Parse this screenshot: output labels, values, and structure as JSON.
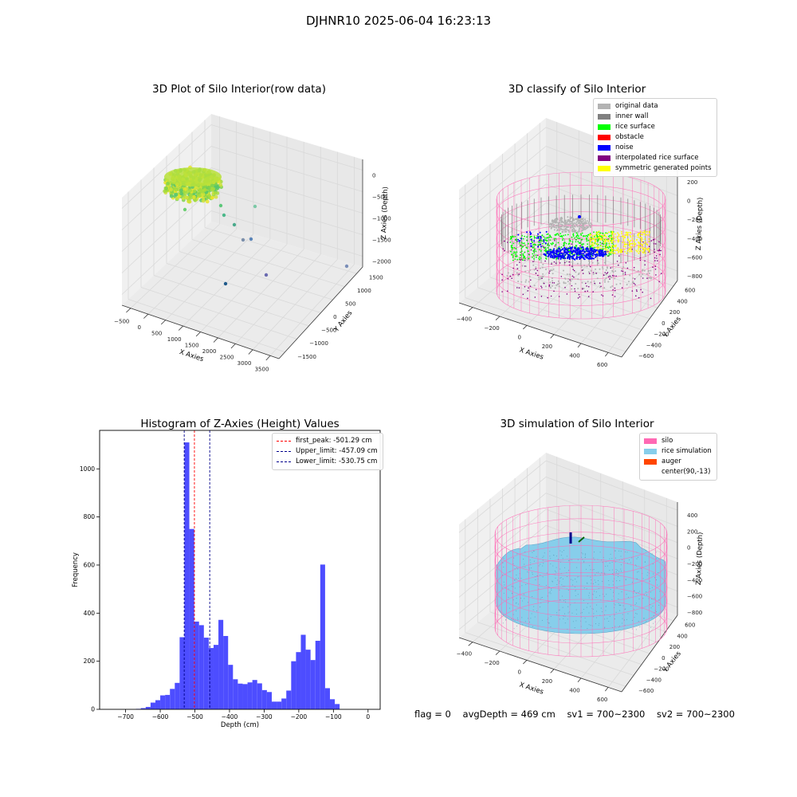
{
  "suptitle": "DJHNR10 2025-06-04 16:23:13",
  "colors": {
    "original": "#b3b3b3",
    "wall": "#808080",
    "rice_surface": "#00ff00",
    "obstacle": "#ff0000",
    "noise": "#0000ff",
    "interp": "#800080",
    "symmetric": "#ffff00",
    "silo": "#ff69b4",
    "rice_sim": "#87ceeb",
    "auger": "#ff4500",
    "hist_bar": "#4d4dff",
    "peak_line": "#ff0000",
    "limit_line": "#00008b"
  },
  "plot1": {
    "title": "3D Plot of Silo Interior(row data)",
    "xlabel": "X Axies",
    "ylabel": "Y Axies",
    "zlabel": "Z Axies (Depth)",
    "xticks": [
      "−500",
      "0",
      "500",
      "1000",
      "1500",
      "2000",
      "2500",
      "3000",
      "3500"
    ],
    "yticks": [
      "−1500",
      "−1000",
      "−500",
      "0",
      "500",
      "1000",
      "1500"
    ],
    "zticks": [
      "−2000",
      "−1500",
      "−1000",
      "−500",
      "0"
    ]
  },
  "plot2": {
    "title": "3D classify of Silo Interior",
    "xlabel": "X Axies",
    "ylabel": "Y Axies",
    "zlabel": "Z Axies (Depth)",
    "xticks": [
      "−400",
      "−200",
      "0",
      "200",
      "400",
      "600"
    ],
    "yticks": [
      "−600",
      "−400",
      "−200",
      "0",
      "200",
      "400",
      "600"
    ],
    "zticks": [
      "−800",
      "−600",
      "−400",
      "−200",
      "0",
      "200"
    ],
    "legend": [
      {
        "label": "original data",
        "color": "#b3b3b3"
      },
      {
        "label": "inner wall",
        "color": "#808080"
      },
      {
        "label": "rice surface",
        "color": "#00ff00"
      },
      {
        "label": "obstacle",
        "color": "#ff0000"
      },
      {
        "label": "noise",
        "color": "#0000ff"
      },
      {
        "label": "interpolated rice surface",
        "color": "#800080"
      },
      {
        "label": "symmetric generated points",
        "color": "#ffff00"
      }
    ]
  },
  "plot4": {
    "title": "3D simulation of Silo Interior",
    "xlabel": "X Axies",
    "ylabel": "Y Axies",
    "zlabel": "Z Axies (Depth)",
    "xticks": [
      "−400",
      "−200",
      "0",
      "200",
      "400",
      "600"
    ],
    "yticks": [
      "−600",
      "−400",
      "−200",
      "0",
      "200",
      "400",
      "600"
    ],
    "zticks": [
      "−800",
      "−600",
      "−400",
      "−200",
      "0",
      "200",
      "400"
    ],
    "legend": [
      {
        "label": "silo",
        "color": "#ff69b4"
      },
      {
        "label": "rice simulation",
        "color": "#87ceeb"
      },
      {
        "label": "auger",
        "color": "#ff4500"
      },
      {
        "label": "center(90,-13)",
        "color": ""
      }
    ]
  },
  "chart_data": {
    "type": "bar",
    "title": "Histogram of Z-Axies (Height) Values",
    "xlabel": "Depth (cm)",
    "ylabel": "Frequency",
    "xlim": [
      -775,
      35
    ],
    "ylim": [
      0,
      1160
    ],
    "xticks": [
      -700,
      -600,
      -500,
      -400,
      -300,
      -200,
      -100,
      0
    ],
    "yticks": [
      0,
      200,
      400,
      600,
      800,
      1000
    ],
    "tick_labels_x": [
      "−700",
      "−600",
      "−500",
      "−400",
      "−300",
      "−200",
      "−100",
      "0"
    ],
    "tick_labels_y": [
      "0",
      "200",
      "400",
      "600",
      "800",
      "1000"
    ],
    "bin_start": -670,
    "bin_width": 14,
    "values": [
      2,
      5,
      10,
      28,
      38,
      58,
      60,
      85,
      110,
      300,
      1110,
      750,
      365,
      350,
      298,
      255,
      268,
      372,
      305,
      185,
      125,
      107,
      105,
      112,
      122,
      108,
      80,
      72,
      32,
      32,
      45,
      78,
      200,
      238,
      310,
      248,
      205,
      285,
      602,
      88,
      42,
      22
    ],
    "lines": [
      {
        "label": "first_peak: -501.29 cm",
        "x": -501.29,
        "color": "#ff0000"
      },
      {
        "label": "Upper_limit: -457.09 cm",
        "x": -457.09,
        "color": "#00008b"
      },
      {
        "label": "Lower_limit: -530.75 cm",
        "x": -530.75,
        "color": "#00008b"
      }
    ]
  },
  "footer": {
    "flag": "flag = 0",
    "avg": "avgDepth = 469 cm",
    "sv1": "sv1 = 700~2300",
    "sv2": "sv2 = 700~2300"
  }
}
